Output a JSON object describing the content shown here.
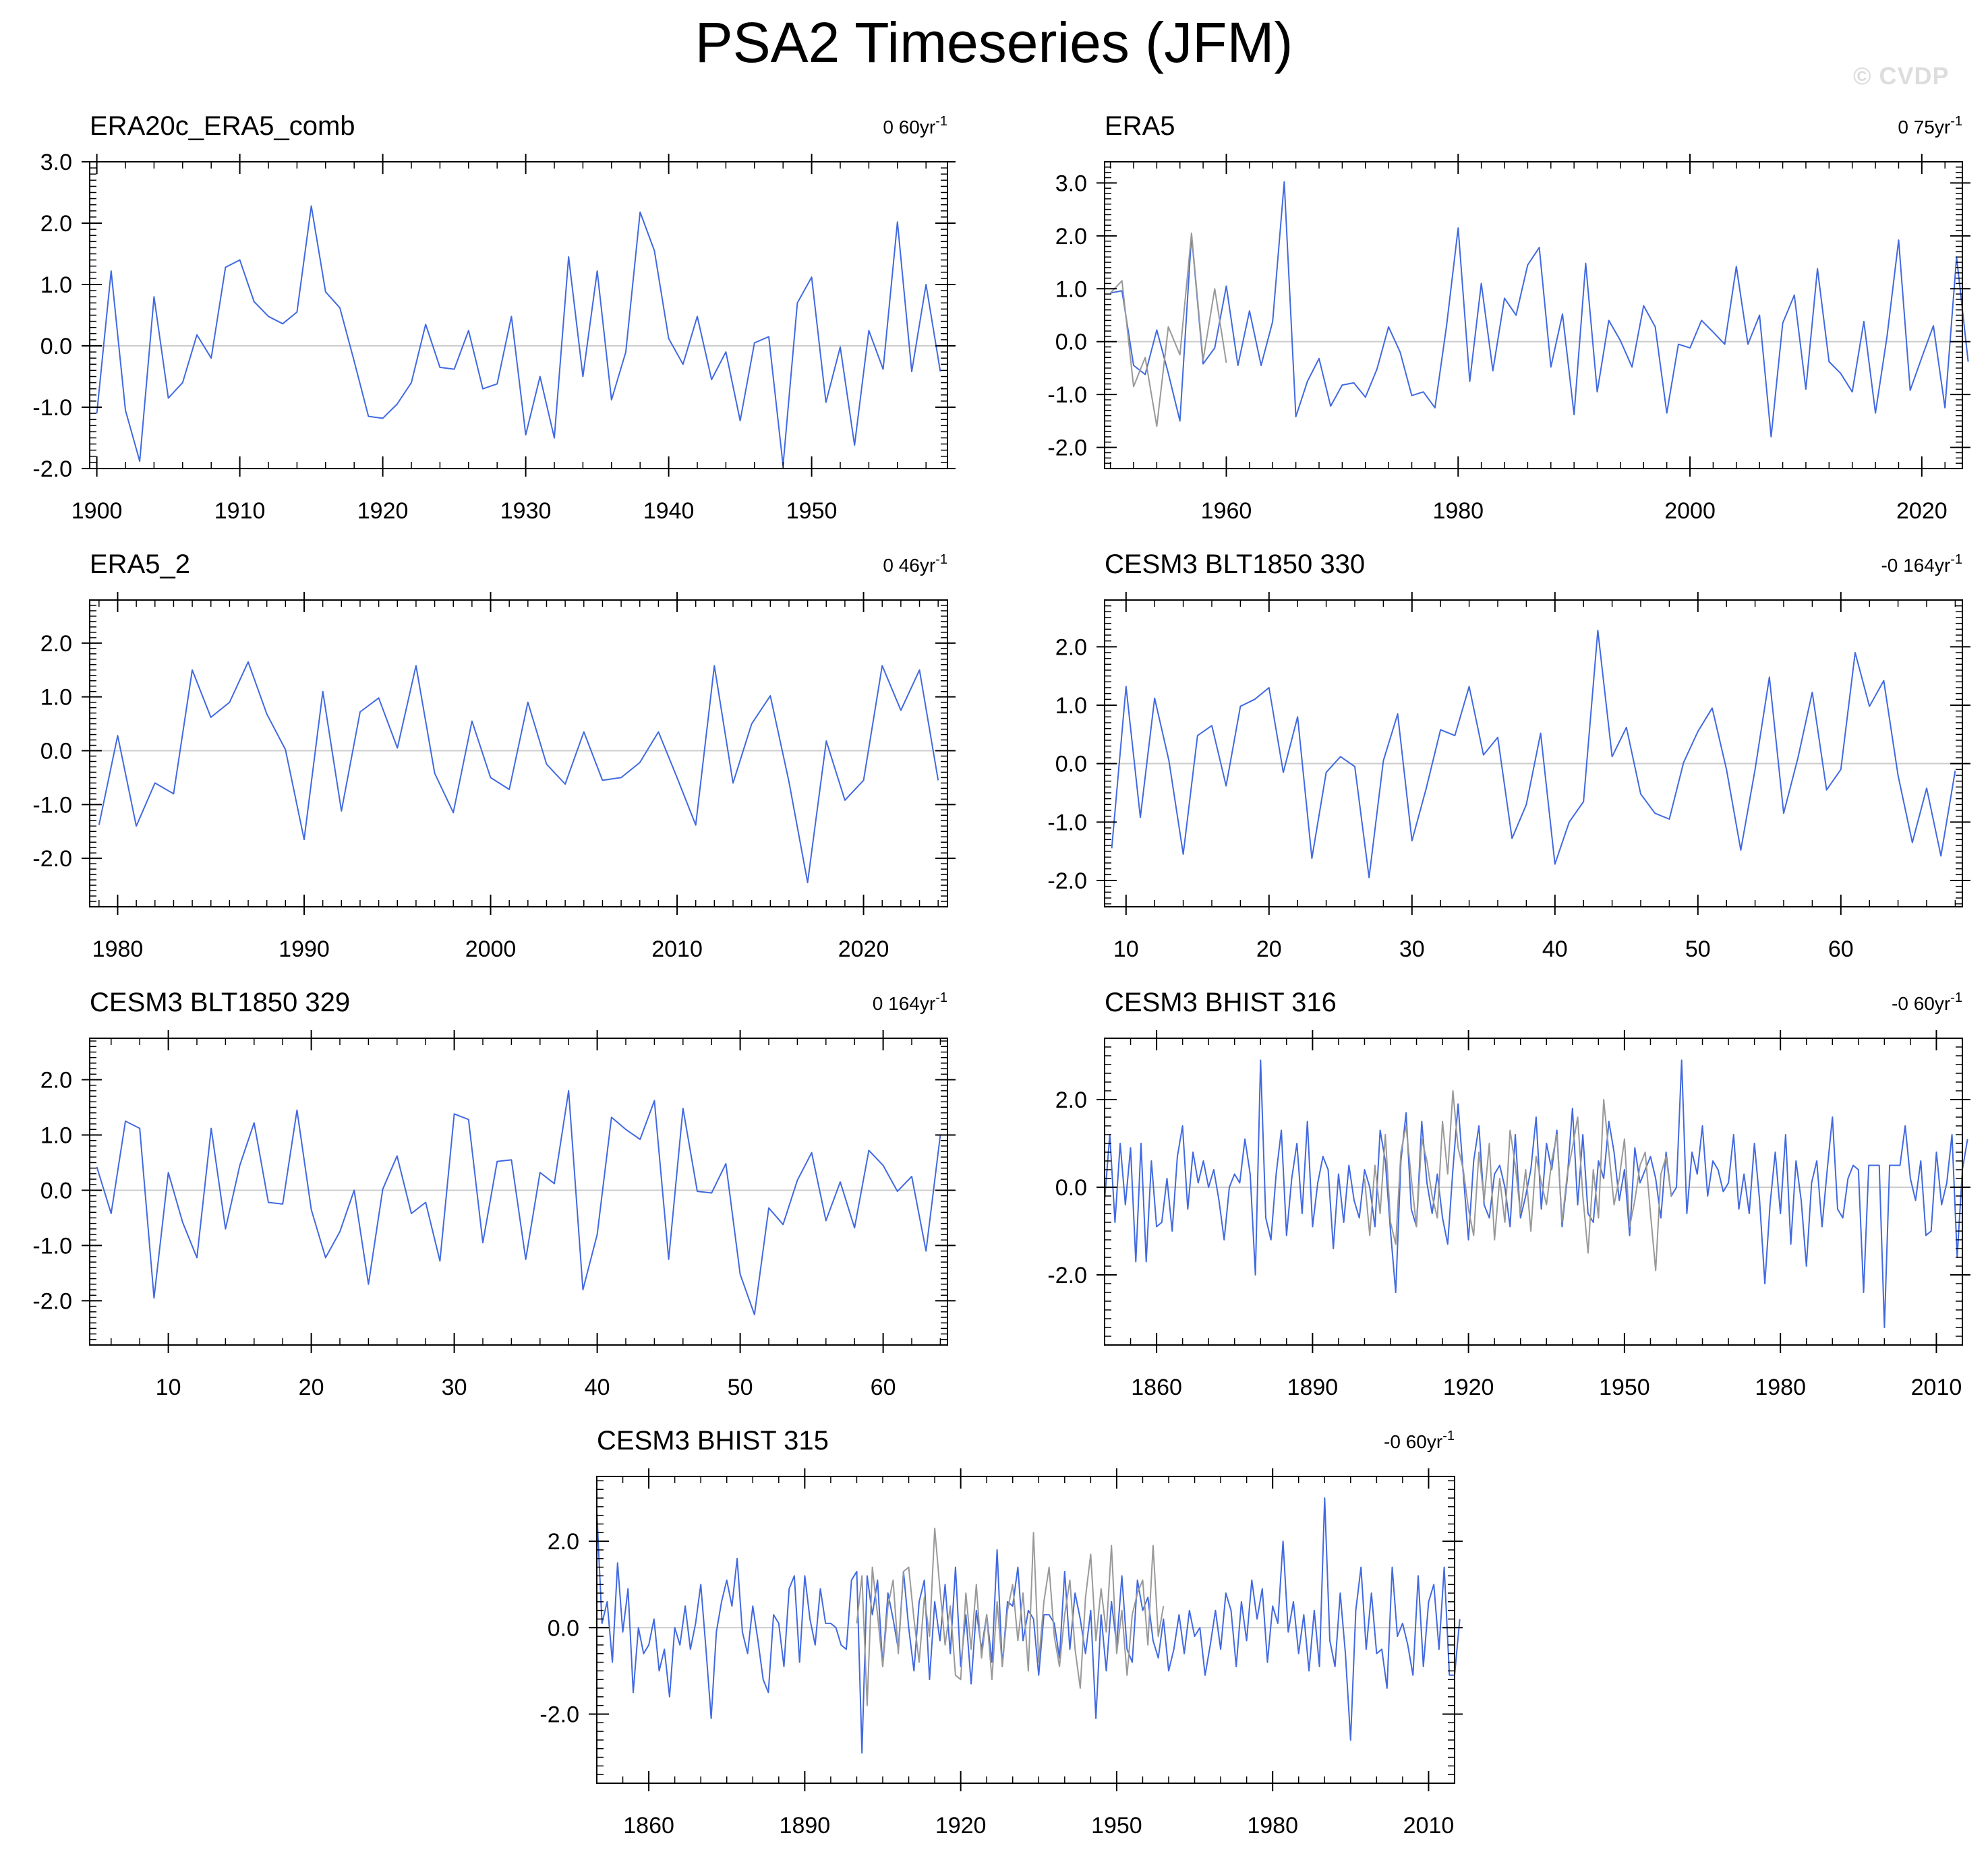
{
  "page": {
    "title": "PSA2 Timeseries (JFM)",
    "watermark": "© CVDP"
  },
  "colors": {
    "line": "#4169e1",
    "reference": "#999999",
    "zero": "#cccccc"
  },
  "chart_data": [
    {
      "type": "line",
      "title": "ERA20c_ERA5_comb",
      "trend": "0 60yr",
      "trend_sup": "-1",
      "xlim": [
        1899.5,
        1959.5
      ],
      "ylim": [
        -2.0,
        3.0
      ],
      "xticks": [
        1900,
        1910,
        1920,
        1930,
        1940,
        1950
      ],
      "xticklabels": [
        "1900",
        "1910",
        "1920",
        "1930",
        "1940",
        "1950"
      ],
      "yticks": [
        -2,
        -1,
        0,
        1,
        2,
        3
      ],
      "yticklabels": [
        "-2.0",
        "-1.0",
        "0.0",
        "1.0",
        "2.0",
        "3.0"
      ],
      "series": [
        {
          "x_start": 1900,
          "values": [
            -1.1,
            1.22,
            -1.05,
            -1.88,
            0.8,
            -0.85,
            -0.6,
            0.18,
            -0.2,
            1.28,
            1.4,
            0.72,
            0.48,
            0.36,
            0.55,
            2.28,
            0.88,
            0.62,
            -0.25,
            -1.15,
            -1.18,
            -0.95,
            -0.6,
            0.35,
            -0.35,
            -0.38,
            0.25,
            -0.7,
            -0.62,
            0.48,
            -1.45,
            -0.5,
            -1.5,
            1.45,
            -0.5,
            1.22,
            -0.88,
            -0.1,
            2.18,
            1.55,
            0.12,
            -0.3,
            0.48,
            -0.55,
            -0.1,
            -1.22,
            0.05,
            0.15,
            -1.95,
            0.7,
            1.12,
            -0.92,
            -0.02,
            -1.62,
            0.25,
            -0.38,
            2.02,
            -0.42,
            1.0,
            -0.42
          ]
        }
      ]
    },
    {
      "type": "line",
      "title": "ERA5",
      "trend": "0 75yr",
      "trend_sup": "-1",
      "xlim": [
        1949.5,
        2023.5
      ],
      "ylim": [
        -2.4,
        3.4
      ],
      "xticks": [
        1960,
        1980,
        2000,
        2020
      ],
      "xticklabels": [
        "1960",
        "1980",
        "2000",
        "2020"
      ],
      "yticks": [
        -2,
        -1,
        0,
        1,
        2,
        3
      ],
      "yticklabels": [
        "-2.0",
        "-1.0",
        "0.0",
        "1.0",
        "2.0",
        "3.0"
      ],
      "series": [
        {
          "x_start": 1950,
          "values": [
            0.92,
            0.96,
            -0.45,
            -0.62,
            0.22,
            -0.6,
            -1.5,
            2.02,
            -0.42,
            -0.12,
            1.05,
            -0.45,
            0.58,
            -0.45,
            0.38,
            3.02,
            -1.42,
            -0.75,
            -0.32,
            -1.22,
            -0.82,
            -0.78,
            -1.05,
            -0.52,
            0.28,
            -0.2,
            -1.02,
            -0.95,
            -1.25,
            0.3,
            2.15,
            -0.75,
            1.1,
            -0.55,
            0.82,
            0.5,
            1.45,
            1.78,
            -0.48,
            0.52,
            -1.38,
            1.48,
            -0.95,
            0.4,
            0.02,
            -0.48,
            0.68,
            0.28,
            -1.35,
            -0.05,
            -0.12,
            0.4,
            0.18,
            -0.05,
            1.42,
            -0.05,
            0.5,
            -1.8,
            0.35,
            0.88,
            -0.9,
            1.38,
            -0.38,
            -0.6,
            -0.95,
            0.38,
            -1.35,
            0.1,
            1.92,
            -0.92,
            -0.3,
            0.3,
            -1.25,
            1.6,
            -0.38
          ]
        },
        {
          "x_start": 1950,
          "reference": true,
          "values": [
            0.92,
            1.15,
            -0.85,
            -0.3,
            -1.6,
            0.28,
            -0.25,
            2.05,
            -0.35,
            1.0,
            -0.4
          ]
        }
      ]
    },
    {
      "type": "line",
      "title": "ERA5_2",
      "trend": "0 46yr",
      "trend_sup": "-1",
      "xlim": [
        1978.5,
        2024.5
      ],
      "ylim": [
        -2.9,
        2.8
      ],
      "xticks": [
        1980,
        1990,
        2000,
        2010,
        2020
      ],
      "xticklabels": [
        "1980",
        "1990",
        "2000",
        "2010",
        "2020"
      ],
      "yticks": [
        -2,
        -1,
        0,
        1,
        2
      ],
      "yticklabels": [
        "-2.0",
        "-1.0",
        "0.0",
        "1.0",
        "2.0"
      ],
      "series": [
        {
          "x_start": 1979,
          "values": [
            -1.38,
            0.28,
            -1.4,
            -0.6,
            -0.8,
            1.5,
            0.62,
            0.9,
            1.65,
            0.68,
            0.02,
            -1.65,
            1.1,
            -1.12,
            0.72,
            0.98,
            0.05,
            1.58,
            -0.42,
            -1.15,
            0.55,
            -0.5,
            -0.72,
            0.9,
            -0.25,
            -0.62,
            0.35,
            -0.55,
            -0.5,
            -0.22,
            0.35,
            -0.5,
            -1.38,
            1.58,
            -0.6,
            0.5,
            1.02,
            -0.58,
            -2.45,
            0.18,
            -0.92,
            -0.55,
            1.58,
            0.75,
            1.5,
            -0.55
          ]
        }
      ]
    },
    {
      "type": "line",
      "title": "CESM3 BLT1850 330",
      "trend": "-0 164yr",
      "trend_sup": "-1",
      "xlim": [
        8.5,
        68.5
      ],
      "ylim": [
        -2.45,
        2.8
      ],
      "xticks": [
        10,
        20,
        30,
        40,
        50,
        60
      ],
      "xticklabels": [
        "10",
        "20",
        "30",
        "40",
        "50",
        "60"
      ],
      "yticks": [
        -2,
        -1,
        0,
        1,
        2
      ],
      "yticklabels": [
        "-2.0",
        "-1.0",
        "0.0",
        "1.0",
        "2.0"
      ],
      "series": [
        {
          "x_start": 9,
          "values": [
            -1.45,
            1.32,
            -0.92,
            1.12,
            0.05,
            -1.55,
            0.48,
            0.65,
            -0.38,
            0.98,
            1.1,
            1.3,
            -0.15,
            0.8,
            -1.62,
            -0.15,
            0.12,
            -0.05,
            -1.95,
            0.05,
            0.85,
            -1.32,
            -0.42,
            0.58,
            0.48,
            1.32,
            0.15,
            0.45,
            -1.28,
            -0.7,
            0.52,
            -1.72,
            -1.0,
            -0.65,
            2.28,
            0.12,
            0.62,
            -0.52,
            -0.85,
            -0.95,
            0.02,
            0.55,
            0.95,
            -0.1,
            -1.48,
            -0.1,
            1.48,
            -0.85,
            0.1,
            1.22,
            -0.45,
            -0.1,
            1.9,
            0.98,
            1.42,
            -0.2,
            -1.35,
            -0.42,
            -1.58,
            -0.12
          ]
        }
      ]
    },
    {
      "type": "line",
      "title": "CESM3 BLT1850 329",
      "trend": "0 164yr",
      "trend_sup": "-1",
      "xlim": [
        4.5,
        64.5
      ],
      "ylim": [
        -2.8,
        2.75
      ],
      "xticks": [
        10,
        20,
        30,
        40,
        50,
        60
      ],
      "xticklabels": [
        "10",
        "20",
        "30",
        "40",
        "50",
        "60"
      ],
      "yticks": [
        -2,
        -1,
        0,
        1,
        2
      ],
      "yticklabels": [
        "-2.0",
        "-1.0",
        "0.0",
        "1.0",
        "2.0"
      ],
      "series": [
        {
          "x_start": 5,
          "values": [
            0.42,
            -0.42,
            1.25,
            1.12,
            -1.95,
            0.32,
            -0.58,
            -1.22,
            1.12,
            -0.7,
            0.45,
            1.22,
            -0.22,
            -0.25,
            1.45,
            -0.35,
            -1.22,
            -0.75,
            0.0,
            -1.7,
            0.02,
            0.62,
            -0.42,
            -0.22,
            -1.28,
            1.38,
            1.28,
            -0.95,
            0.52,
            0.55,
            -1.25,
            0.32,
            0.12,
            1.8,
            -1.8,
            -0.8,
            1.32,
            1.1,
            0.92,
            1.62,
            -1.25,
            1.48,
            -0.02,
            -0.05,
            0.48,
            -1.52,
            -2.25,
            -0.32,
            -0.62,
            0.18,
            0.68,
            -0.55,
            0.15,
            -0.68,
            0.72,
            0.45,
            -0.02,
            0.25,
            -1.1,
            1.0
          ]
        }
      ]
    },
    {
      "type": "line",
      "title": "CESM3 BHIST 316",
      "trend": "-0 60yr",
      "trend_sup": "-1",
      "xlim": [
        1850,
        2015
      ],
      "ylim": [
        -3.6,
        3.4
      ],
      "xticks": [
        1860,
        1890,
        1920,
        1950,
        1980,
        2010
      ],
      "xticklabels": [
        "1860",
        "1890",
        "1920",
        "1950",
        "1980",
        "2010"
      ],
      "yticks": [
        -2,
        0,
        2
      ],
      "yticklabels": [
        "-2.0",
        "0.0",
        "2.0"
      ],
      "series": [
        {
          "x_start": 1850,
          "values": [
            -0.3,
            1.2,
            -0.8,
            1.0,
            -0.4,
            0.9,
            -1.7,
            1.0,
            -1.7,
            0.6,
            -0.9,
            -0.8,
            0.2,
            -1.0,
            0.7,
            1.4,
            -0.5,
            0.8,
            0.1,
            0.6,
            0.0,
            0.4,
            -0.3,
            -1.2,
            0.0,
            0.3,
            0.1,
            1.1,
            0.3,
            -2.0,
            2.9,
            -0.7,
            -1.2,
            0.3,
            1.3,
            -1.1,
            0.2,
            1.0,
            -0.6,
            1.5,
            -0.9,
            0.1,
            0.7,
            0.4,
            -1.4,
            0.3,
            -0.8,
            0.5,
            -0.3,
            -0.7,
            0.4,
            0.0,
            -0.9,
            1.3,
            0.6,
            -1.0,
            -2.4,
            0.6,
            1.7,
            -0.5,
            -0.9,
            1.5,
            0.1,
            -0.6,
            0.3,
            -0.7,
            -1.3,
            0.4,
            1.9,
            0.3,
            -1.2,
            0.6,
            1.4,
            -0.4,
            -0.7,
            0.3,
            0.5,
            0.0,
            -0.9,
            1.2,
            -0.7,
            -0.2,
            0.4,
            1.6,
            -0.5,
            1.0,
            0.4,
            1.3,
            -0.9,
            0.2,
            1.8,
            -0.4,
            1.2,
            -0.6,
            -0.8,
            0.6,
            0.2,
            1.5,
            0.8,
            -0.3,
            0.4,
            -1.1,
            0.9,
            0.1,
            0.4,
            0.7,
            0.2,
            -0.7,
            0.8,
            -0.2,
            0.0,
            2.9,
            -0.6,
            0.8,
            0.3,
            1.4,
            -0.2,
            0.6,
            0.4,
            -0.1,
            0.1,
            1.2,
            -0.5,
            0.3,
            -0.6,
            1.0,
            -0.3,
            -2.2,
            -0.4,
            0.8,
            -0.6,
            1.2,
            -1.3,
            0.6,
            -0.3,
            -1.8,
            0.1,
            0.6,
            -0.9,
            0.4,
            1.6,
            -0.5,
            -0.7,
            0.2,
            0.5,
            0.4,
            -2.4,
            0.5,
            0.5,
            0.5,
            -3.2,
            0.5,
            0.5,
            0.5,
            1.4,
            0.2,
            -0.3,
            0.6,
            -1.1,
            -1.0,
            0.8,
            -0.4,
            0.1,
            1.2,
            -1.6,
            0.4,
            1.1
          ]
        },
        {
          "x_start": 1900,
          "reference": true,
          "values": [
            0.2,
            -1.1,
            0.5,
            -0.6,
            1.2,
            -0.8,
            -1.3,
            0.8,
            1.4,
            0.2,
            -0.9,
            1.1,
            0.6,
            -0.2,
            -0.7,
            1.5,
            0.3,
            2.2,
            0.9,
            0.4,
            -0.5,
            -1.1,
            0.8,
            -0.3,
            1.0,
            -1.2,
            0.2,
            -0.8,
            1.3,
            0.5,
            -0.6,
            0.4,
            -1.0,
            0.7,
            0.1,
            -0.4,
            0.6,
            1.2,
            -0.8,
            0.3,
            0.9,
            1.6,
            -0.2,
            -1.5,
            0.4,
            -0.7,
            2.0,
            0.8,
            -0.4,
            0.2,
            1.1,
            -0.9,
            -0.3,
            0.5,
            0.8,
            -0.6,
            -1.9,
            0.3,
            0.7,
            -0.2
          ]
        }
      ]
    },
    {
      "type": "line",
      "title": "CESM3 BHIST 315",
      "trend": "-0 60yr",
      "trend_sup": "-1",
      "xlim": [
        1850,
        2015
      ],
      "ylim": [
        -3.6,
        3.5
      ],
      "xticks": [
        1860,
        1890,
        1920,
        1950,
        1980,
        2010
      ],
      "xticklabels": [
        "1860",
        "1890",
        "1920",
        "1950",
        "1980",
        "2010"
      ],
      "yticks": [
        -2,
        0,
        2
      ],
      "yticklabels": [
        "-2.0",
        "0.0",
        "2.0"
      ],
      "series": [
        {
          "x_start": 1850,
          "values": [
            2.7,
            0.1,
            0.6,
            -0.8,
            1.5,
            -0.1,
            0.9,
            -1.5,
            0.0,
            -0.6,
            -0.4,
            0.2,
            -1.0,
            -0.5,
            -1.6,
            0.0,
            -0.4,
            0.5,
            -0.5,
            0.1,
            1.0,
            -0.5,
            -2.1,
            -0.1,
            0.6,
            1.1,
            0.5,
            1.6,
            -0.1,
            -0.6,
            0.5,
            -0.3,
            -1.2,
            -1.5,
            0.3,
            0.1,
            -0.9,
            0.9,
            1.2,
            -0.8,
            1.2,
            0.2,
            -0.4,
            0.9,
            0.1,
            0.1,
            0.0,
            -0.4,
            -0.5,
            1.1,
            1.3,
            -2.9,
            1.2,
            0.3,
            1.1,
            -0.9,
            0.8,
            0.2,
            -0.5,
            1.3,
            0.0,
            -1.0,
            0.6,
            1.1,
            -1.2,
            0.6,
            -0.3,
            1.0,
            -0.6,
            1.4,
            -0.9,
            0.3,
            -1.3,
            0.4,
            -0.5,
            0.3,
            -0.8,
            1.8,
            -0.9,
            0.6,
            0.5,
            1.4,
            -0.3,
            0.4,
            0.2,
            -1.1,
            0.3,
            0.3,
            0.1,
            -0.7,
            1.3,
            -0.5,
            0.8,
            0.2,
            -0.6,
            0.4,
            -2.1,
            0.3,
            -1.0,
            0.6,
            -0.4,
            1.2,
            -0.5,
            -0.8,
            1.1,
            0.4,
            0.7,
            -0.3,
            -0.7,
            0.2,
            -1.0,
            -0.5,
            0.3,
            -0.6,
            0.4,
            -0.2,
            0.0,
            -1.1,
            -0.4,
            0.4,
            -0.5,
            0.8,
            0.4,
            -0.9,
            0.6,
            -0.3,
            1.1,
            0.2,
            0.9,
            -0.8,
            0.5,
            0.1,
            2.0,
            -0.1,
            0.6,
            -0.6,
            0.3,
            -1.0,
            0.4,
            -0.9,
            3.0,
            -0.3,
            -0.9,
            0.8,
            -0.6,
            -2.6,
            0.4,
            1.4,
            -0.5,
            0.8,
            -0.6,
            -0.5,
            -1.4,
            1.4,
            -0.2,
            0.1,
            -0.4,
            -1.1,
            1.2,
            -0.9,
            0.6,
            1.0,
            -0.5,
            1.4,
            -1.1,
            -1.1,
            0.2
          ]
        },
        {
          "x_start": 1900,
          "reference": true,
          "values": [
            0.1,
            1.2,
            -1.8,
            1.4,
            0.3,
            -0.9,
            0.5,
            1.1,
            -0.6,
            1.3,
            1.4,
            0.2,
            -0.8,
            0.7,
            -0.2,
            2.3,
            0.9,
            -0.4,
            0.5,
            -1.1,
            -1.2,
            0.8,
            -0.5,
            1.0,
            -0.7,
            0.3,
            -1.2,
            0.6,
            -0.9,
            0.4,
            1.0,
            -0.3,
            0.8,
            -1.0,
            2.2,
            -0.8,
            0.6,
            1.4,
            -0.2,
            -0.9,
            0.3,
            1.1,
            -0.5,
            -1.4,
            0.7,
            1.7,
            -0.3,
            0.9,
            -0.1,
            1.9,
            -0.6,
            0.4,
            -1.1,
            0.3,
            0.8,
            1.1,
            -0.4,
            1.9,
            -0.2,
            0.5
          ]
        }
      ]
    }
  ]
}
